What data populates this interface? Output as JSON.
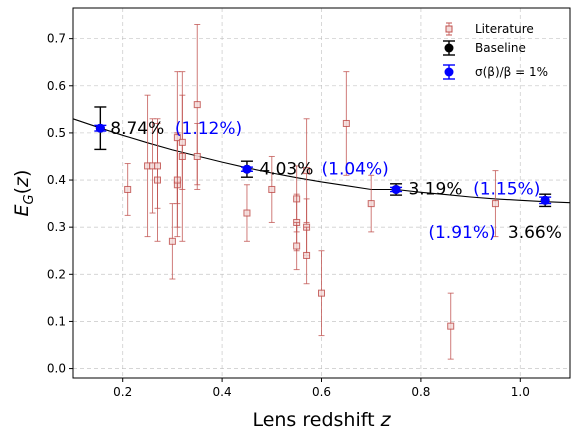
{
  "chart_data": {
    "type": "scatter",
    "title": "",
    "xlabel": "Lens redshift z",
    "ylabel": "E_G(z)",
    "xlim": [
      0.1,
      1.1
    ],
    "ylim": [
      -0.02,
      0.765
    ],
    "xticks": [
      0.2,
      0.4,
      0.6,
      0.8,
      1.0
    ],
    "xtick_labels": [
      "0.2",
      "0.4",
      "0.6",
      "0.8",
      "1.0"
    ],
    "yticks": [
      0.0,
      0.1,
      0.2,
      0.3,
      0.4,
      0.5,
      0.6,
      0.7
    ],
    "ytick_labels": [
      "0.0",
      "0.1",
      "0.2",
      "0.3",
      "0.4",
      "0.5",
      "0.6",
      "0.7"
    ],
    "grid": true,
    "legend_position": "top-right",
    "model_curve": {
      "x": [
        0.1,
        0.15,
        0.2,
        0.25,
        0.3,
        0.35,
        0.4,
        0.45,
        0.5,
        0.55,
        0.6,
        0.65,
        0.7,
        0.75,
        0.8,
        0.85,
        0.9,
        0.95,
        1.0,
        1.05,
        1.1
      ],
      "y": [
        0.53,
        0.512,
        0.495,
        0.479,
        0.464,
        0.451,
        0.438,
        0.426,
        0.415,
        0.405,
        0.396,
        0.388,
        0.38,
        0.38,
        0.374,
        0.369,
        0.364,
        0.36,
        0.357,
        0.354,
        0.352
      ]
    },
    "series": [
      {
        "name": "Literature",
        "color": "#c0504d",
        "marker": "square",
        "points": [
          {
            "x": 0.21,
            "y": 0.38,
            "err": 0.055
          },
          {
            "x": 0.25,
            "y": 0.43,
            "err": 0.15
          },
          {
            "x": 0.26,
            "y": 0.43,
            "err": 0.1
          },
          {
            "x": 0.27,
            "y": 0.4,
            "err": 0.13
          },
          {
            "x": 0.27,
            "y": 0.43,
            "err": 0.09
          },
          {
            "x": 0.3,
            "y": 0.27,
            "err": 0.08
          },
          {
            "x": 0.31,
            "y": 0.39,
            "err": 0.11
          },
          {
            "x": 0.31,
            "y": 0.4,
            "err": 0.1
          },
          {
            "x": 0.31,
            "y": 0.49,
            "err": 0.14
          },
          {
            "x": 0.32,
            "y": 0.45,
            "err": 0.18
          },
          {
            "x": 0.32,
            "y": 0.48,
            "err": 0.1
          },
          {
            "x": 0.35,
            "y": 0.56,
            "err": 0.17
          },
          {
            "x": 0.35,
            "y": 0.45,
            "err": 0.07
          },
          {
            "x": 0.45,
            "y": 0.33,
            "err": 0.06
          },
          {
            "x": 0.5,
            "y": 0.38,
            "err": 0.07
          },
          {
            "x": 0.55,
            "y": 0.36,
            "err": 0.07
          },
          {
            "x": 0.55,
            "y": 0.31,
            "err": 0.06
          },
          {
            "x": 0.55,
            "y": 0.26,
            "err": 0.05
          },
          {
            "x": 0.57,
            "y": 0.42,
            "err": 0.11
          },
          {
            "x": 0.57,
            "y": 0.3,
            "err": 0.06
          },
          {
            "x": 0.57,
            "y": 0.24,
            "err": 0.06
          },
          {
            "x": 0.6,
            "y": 0.16,
            "err": 0.09
          },
          {
            "x": 0.65,
            "y": 0.52,
            "err": 0.11
          },
          {
            "x": 0.7,
            "y": 0.35,
            "err": 0.06
          },
          {
            "x": 0.86,
            "y": 0.09,
            "err": 0.07
          },
          {
            "x": 0.95,
            "y": 0.35,
            "err": 0.07
          }
        ]
      },
      {
        "name": "Baseline",
        "color": "#000000",
        "marker": "circle",
        "points": [
          {
            "x": 0.155,
            "y": 0.51,
            "err": 0.045
          },
          {
            "x": 0.45,
            "y": 0.423,
            "err": 0.017
          },
          {
            "x": 0.75,
            "y": 0.38,
            "err": 0.012
          },
          {
            "x": 1.05,
            "y": 0.357,
            "err": 0.013
          }
        ]
      },
      {
        "name": "σ(β)/β = 1%",
        "color": "#0000ff",
        "marker": "circle",
        "points": [
          {
            "x": 0.155,
            "y": 0.51,
            "err": 0.006
          },
          {
            "x": 0.45,
            "y": 0.423,
            "err": 0.0044
          },
          {
            "x": 0.75,
            "y": 0.38,
            "err": 0.0044
          },
          {
            "x": 1.05,
            "y": 0.357,
            "err": 0.0068
          }
        ]
      }
    ],
    "annotations": [
      {
        "x": 0.175,
        "y": 0.51,
        "text": "8.74%",
        "color": "#000000"
      },
      {
        "x": 0.305,
        "y": 0.51,
        "text": "(1.12%)",
        "color": "#0000ff"
      },
      {
        "x": 0.475,
        "y": 0.424,
        "text": "4.03%",
        "color": "#000000"
      },
      {
        "x": 0.6,
        "y": 0.424,
        "text": "(1.04%)",
        "color": "#0000ff"
      },
      {
        "x": 0.775,
        "y": 0.382,
        "text": "3.19%",
        "color": "#000000"
      },
      {
        "x": 0.905,
        "y": 0.382,
        "text": "(1.15%)",
        "color": "#0000ff"
      },
      {
        "x": 0.815,
        "y": 0.29,
        "text": "(1.91%)",
        "color": "#0000ff"
      },
      {
        "x": 0.975,
        "y": 0.29,
        "text": "3.66%",
        "color": "#000000"
      }
    ]
  }
}
